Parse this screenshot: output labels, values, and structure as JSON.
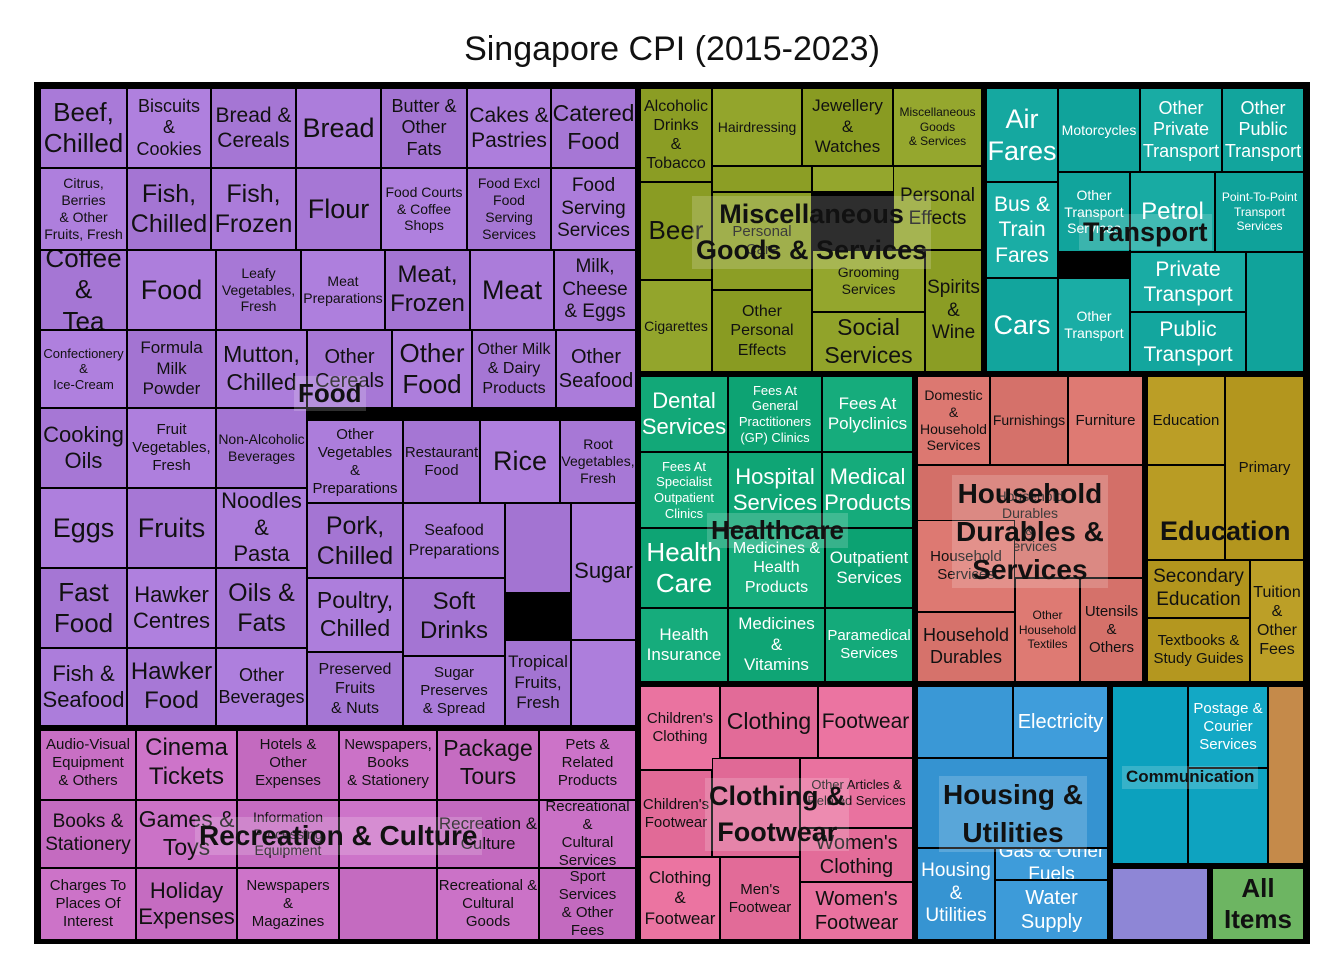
{
  "chart_data": {
    "type": "treemap",
    "title": "Singapore CPI (2015-2023)",
    "root_label": "All Items",
    "groups": [
      {
        "name": "Food",
        "color": "#a97ad8",
        "label_lines": [
          "Food"
        ],
        "items": [
          "Beef, Chilled",
          "Biscuits & Cookies",
          "Bread & Cereals",
          "Bread",
          "Butter & Other Fats",
          "Cakes & Pastries",
          "Catered Food",
          "Citrus, Berries & Other Fruits, Fresh",
          "Fish, Chilled",
          "Fish, Frozen",
          "Flour",
          "Food Courts & Coffee Shops",
          "Food Excl Food Serving Services",
          "Food Serving Services",
          "Coffee & Tea",
          "Food",
          "Leafy Vegetables, Fresh",
          "Meat Preparations",
          "Meat, Frozen",
          "Meat",
          "Milk, Cheese & Eggs",
          "Confectionery & Ice-Cream",
          "Formula Milk Powder",
          "Mutton, Chilled",
          "Other Cereals",
          "Other Food",
          "Other Milk & Dairy Products",
          "Other Seafood",
          "Cooking Oils",
          "Fruit Vegetables, Fresh",
          "Non-Alcoholic Beverages",
          "Other Vegetables & Preparations",
          "Restaurant Food",
          "Rice",
          "Root Vegetables, Fresh",
          "Eggs",
          "Fruits",
          "Noodles & Pasta",
          "Pork, Chilled",
          "Seafood Preparations",
          "Sugar",
          "Fast Food",
          "Hawker Centres",
          "Oils & Fats",
          "Poultry, Chilled",
          "Soft Drinks",
          "Fish & Seafood",
          "Hawker Food",
          "Other Beverages",
          "Preserved Fruits & Nuts",
          "Sugar Preserves & Spread",
          "Tropical Fruits, Fresh"
        ]
      },
      {
        "name": "Recreation & Culture",
        "color": "#c86fc4",
        "label_lines": [
          "Recreation & Culture"
        ],
        "items": [
          "Audio-Visual Equipment & Others",
          "Cinema Tickets",
          "Hotels & Other Expenses",
          "Newspapers, Books & Stationery",
          "Package Tours",
          "Pets & Related Products",
          "Books & Stationery",
          "Games & Toys",
          "Information Processing Equipment",
          "Recreation & Culture",
          "Recreational & Cultural Services",
          "Charges To Places Of Interest",
          "Holiday Expenses",
          "Newspapers & Magazines",
          "Recreational & Cultural Goods",
          "Sport Services & Other Fees"
        ]
      },
      {
        "name": "Miscellaneous Goods & Services",
        "color": "#8fa128",
        "label_lines": [
          "Miscellaneous",
          "Goods & Services"
        ],
        "items": [
          "Alcoholic Drinks & Tobacco",
          "Hairdressing",
          "Jewellery & Watches",
          "Miscellaneous Goods & Services",
          "Beer",
          "Personal Effects",
          "Personal Care",
          "Grooming Services",
          "Spirits & Wine",
          "Cigarettes",
          "Other Personal Effects",
          "Social Services"
        ]
      },
      {
        "name": "Transport",
        "color": "#15a8a0",
        "label_lines": [
          "Transport"
        ],
        "items": [
          "Air Fares",
          "Motorcycles",
          "Other Private Transport",
          "Other Public Transport",
          "Bus & Train Fares",
          "Other Transport Services",
          "Petrol",
          "Point-To-Point Transport Services",
          "Private Transport",
          "Cars",
          "Other Transport",
          "Public Transport"
        ]
      },
      {
        "name": "Healthcare",
        "color": "#12a878",
        "label_lines": [
          "Healthcare"
        ],
        "items": [
          "Dental Services",
          "Fees At General Practitioners (GP) Clinics",
          "Fees At Polyclinics",
          "Fees At Specialist Outpatient Clinics",
          "Hospital Services",
          "Medical Products",
          "Health Care",
          "Medicines & Health Products",
          "Outpatient Services",
          "Health Insurance",
          "Medicines & Vitamins",
          "Paramedical Services"
        ]
      },
      {
        "name": "Household Durables & Services",
        "color": "#d9756e",
        "label_lines": [
          "Household",
          "Durables &",
          "Services"
        ],
        "items": [
          "Domestic & Household Services",
          "Furnishings",
          "Furniture",
          "Household Durables & Services",
          "Household Services",
          "Household Durables",
          "Other Household Textiles",
          "Utensils & Others"
        ]
      },
      {
        "name": "Education",
        "color": "#b79a22",
        "label_lines": [
          "Education"
        ],
        "items": [
          "Education",
          "Primary",
          "Secondary Education",
          "Tuition & Other Fees",
          "Textbooks & Study Guides"
        ]
      },
      {
        "name": "Clothing & Footwear",
        "color": "#e66f9c",
        "label_lines": [
          "Clothing &",
          "Footwear"
        ],
        "items": [
          "Children's Clothing",
          "Clothing",
          "Footwear",
          "Children's Footwear",
          "Other Articles & Related Services",
          "Women's Clothing",
          "Clothing & Footwear",
          "Men's Footwear",
          "Women's Footwear"
        ]
      },
      {
        "name": "Housing & Utilities",
        "color": "#3a98d6",
        "label_lines": [
          "Housing &",
          "Utilities"
        ],
        "items": [
          "Electricity",
          "Gas & Other Fuels",
          "Housing & Utilities",
          "Water Supply"
        ]
      },
      {
        "name": "Communication",
        "color": "#10a5c2",
        "label_lines": [
          "Communication"
        ],
        "items": [
          "Postage & Courier Services"
        ]
      }
    ]
  }
}
